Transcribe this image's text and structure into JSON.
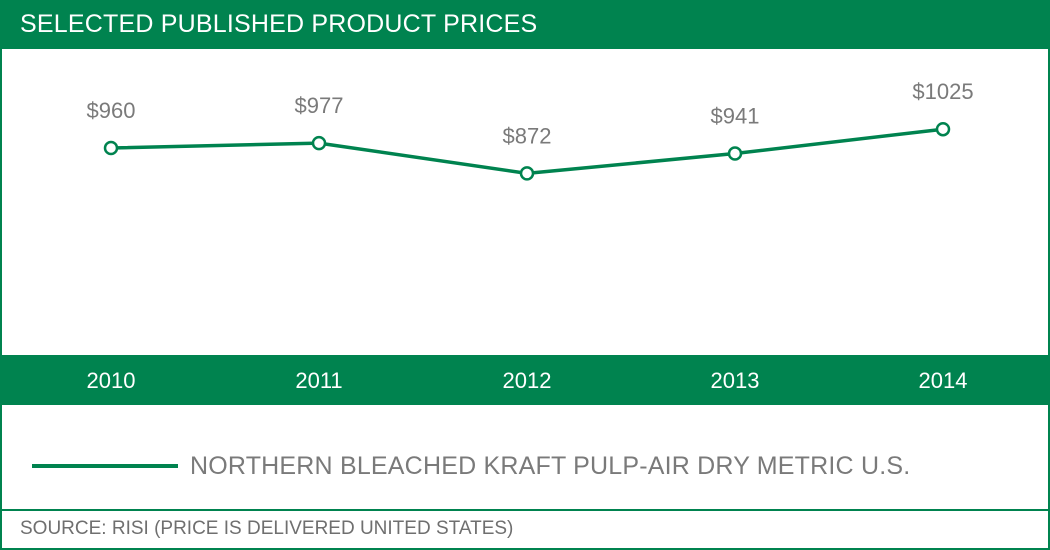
{
  "header": {
    "title": "SELECTED PUBLISHED PRODUCT PRICES"
  },
  "legend": {
    "label": "NORTHERN BLEACHED KRAFT PULP-AIR DRY METRIC U.S."
  },
  "footer": {
    "source": "SOURCE: RISI (PRICE IS DELIVERED UNITED STATES)"
  },
  "colors": {
    "accent": "#00834f",
    "label_gray": "#7a7a7a",
    "background": "#ffffff"
  },
  "chart_data": {
    "type": "line",
    "categories": [
      "2010",
      "2011",
      "2012",
      "2013",
      "2014"
    ],
    "series": [
      {
        "name": "NORTHERN BLEACHED KRAFT PULP-AIR DRY METRIC U.S.",
        "values": [
          960,
          977,
          872,
          941,
          1025
        ]
      }
    ],
    "data_labels": [
      "$960",
      "$977",
      "$872",
      "$941",
      "$1025"
    ],
    "title": "SELECTED PUBLISHED PRODUCT PRICES",
    "xlabel": "",
    "ylabel": "",
    "grid": false,
    "legend_position": "bottom"
  }
}
